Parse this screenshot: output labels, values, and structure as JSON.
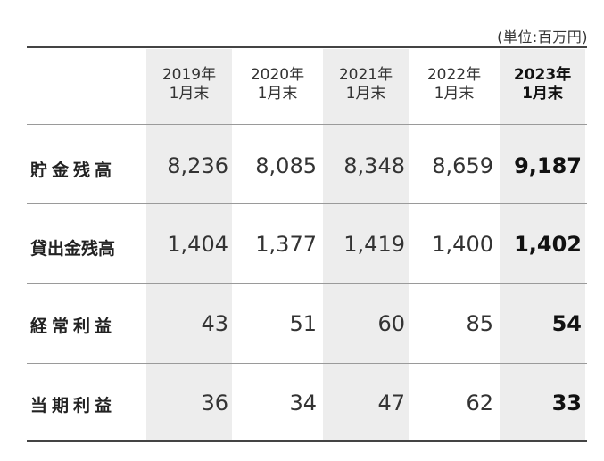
{
  "unit_note": "(単位:百万円)",
  "columns": [
    {
      "year": "2019年",
      "sub": "1月末"
    },
    {
      "year": "2020年",
      "sub": "1月末"
    },
    {
      "year": "2021年",
      "sub": "1月末"
    },
    {
      "year": "2022年",
      "sub": "1月末"
    },
    {
      "year": "2023年",
      "sub": "1月末"
    }
  ],
  "rows": [
    {
      "label": "貯金残高",
      "values": [
        "8,236",
        "8,085",
        "8,348",
        "8,659",
        "9,187"
      ]
    },
    {
      "label": "貸出金残高",
      "values": [
        "1,404",
        "1,377",
        "1,419",
        "1,400",
        "1,402"
      ]
    },
    {
      "label": "経常利益",
      "values": [
        "43",
        "51",
        "60",
        "85",
        "54"
      ]
    },
    {
      "label": "当期利益",
      "values": [
        "36",
        "34",
        "47",
        "62",
        "33"
      ]
    }
  ]
}
